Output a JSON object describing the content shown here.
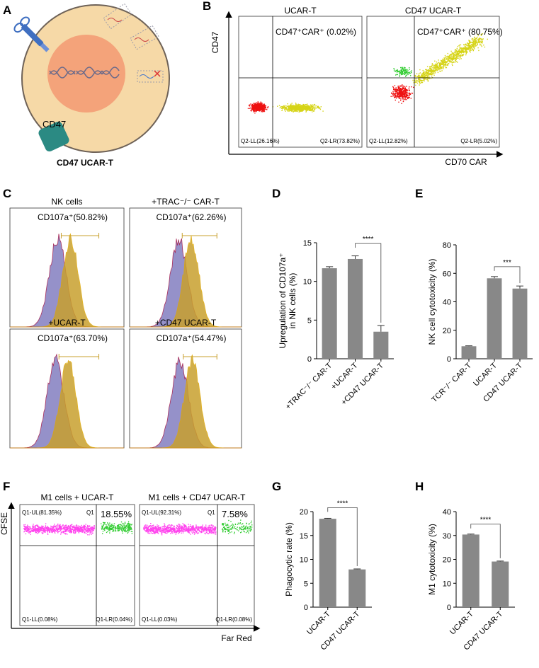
{
  "colors": {
    "cell_outer": "#f6d9a7",
    "nucleus": "#f4a37a",
    "cd47": "#2b8a83",
    "bar": "#888888",
    "gate_red": "#ee1111",
    "gate_yellow": "#d6d417",
    "gate_green": "#33cc33",
    "gate_magenta": "#ff44ee",
    "hist_purple": "#8a86c4",
    "hist_gold": "#c8a02e"
  },
  "panels": {
    "A": "A",
    "B": "B",
    "C": "C",
    "D": "D",
    "E": "E",
    "F": "F",
    "G": "G",
    "H": "H"
  },
  "schematic": {
    "receptor_label": "CD47",
    "cell_label": "CD47 UCAR-T"
  },
  "flow_b": {
    "y_axis": "CD47",
    "x_axis": "CD70 CAR",
    "plots": [
      {
        "title": "UCAR-T",
        "ur": "CD47⁺CAR⁺ (0.02%)",
        "ll": "Q2-LL(26.16%)",
        "lr": "Q2-LR(73.82%)"
      },
      {
        "title": "CD47 UCAR-T",
        "ur": "CD47⁺CAR⁺ (80.75%)",
        "ll": "Q2-LL(12.82%)",
        "lr": "Q2-LR(5.02%)"
      }
    ]
  },
  "histograms": [
    {
      "title": "NK cells",
      "value": "CD107a⁺(50.82%)"
    },
    {
      "title": "+TRAC⁻/⁻ CAR-T",
      "value": "CD107a⁺(62.26%)"
    },
    {
      "title": "+UCAR-T",
      "value": "CD107a⁺(63.70%)"
    },
    {
      "title": "+CD47 UCAR-T",
      "value": "CD107a⁺(54.47%)"
    }
  ],
  "flow_f": {
    "y_axis": "CFSE",
    "x_axis": "Far Red",
    "plots": [
      {
        "title": "M1 cells + UCAR-T",
        "ul": "Q1-UL(81.35%)",
        "q1": "Q1",
        "ur": "18.55%",
        "ll": "Q1-LL(0.08%)",
        "lr": "Q1-LR(0.04%)"
      },
      {
        "title": "M1 cells + CD47 UCAR-T",
        "ul": "Q1-UL(92.31%)",
        "q1": "Q1",
        "ur": "7.58%",
        "ll": "Q1-LL(0.03%)",
        "lr": "Q1-LR(0.08%)"
      }
    ]
  },
  "chart_data": [
    {
      "panel": "D",
      "type": "bar",
      "categories": [
        "+TRAC⁻/⁻ CAR-T",
        "+UCAR-T",
        "+CD47 UCAR-T"
      ],
      "values": [
        11.7,
        12.9,
        3.5
      ],
      "errors": [
        0.2,
        0.4,
        0.8
      ],
      "ylabel_line1": "Upregulation of CD107a⁺",
      "ylabel_line2": "in NK cells (%)",
      "ylim": [
        0,
        15
      ],
      "yticks": [
        0,
        5,
        10,
        15
      ],
      "significance": {
        "from": 1,
        "to": 2,
        "label": "****"
      }
    },
    {
      "panel": "E",
      "type": "bar",
      "categories": [
        "TCR⁻/⁻ CAR-T",
        "UCAR-T",
        "CD47 UCAR-T"
      ],
      "values": [
        8.8,
        56.5,
        49.3
      ],
      "errors": [
        0.3,
        1.2,
        1.8
      ],
      "ylabel_line1": "NK cell cytotoxicity (%)",
      "ylabel_line2": "",
      "ylim": [
        0,
        80
      ],
      "yticks": [
        0,
        20,
        40,
        60,
        80
      ],
      "significance": {
        "from": 1,
        "to": 2,
        "label": "***"
      }
    },
    {
      "panel": "G",
      "type": "bar",
      "categories": [
        "UCAR-T",
        "CD47 UCAR-T"
      ],
      "values": [
        18.5,
        7.9
      ],
      "errors": [
        0.1,
        0.1
      ],
      "ylabel_line1": "Phagocytic rate (%)",
      "ylabel_line2": "",
      "ylim": [
        0,
        20
      ],
      "yticks": [
        0,
        5,
        10,
        15,
        20
      ],
      "significance": {
        "from": 0,
        "to": 1,
        "label": "****"
      }
    },
    {
      "panel": "H",
      "type": "bar",
      "categories": [
        "UCAR-T",
        "CD47 UCAR-T"
      ],
      "values": [
        30.4,
        19.1
      ],
      "errors": [
        0.2,
        0.2
      ],
      "ylabel_line1": "M1 cytotoxicity (%)",
      "ylabel_line2": "",
      "ylim": [
        0,
        40
      ],
      "yticks": [
        0,
        10,
        20,
        30,
        40
      ],
      "significance": {
        "from": 0,
        "to": 1,
        "label": "****"
      }
    }
  ]
}
